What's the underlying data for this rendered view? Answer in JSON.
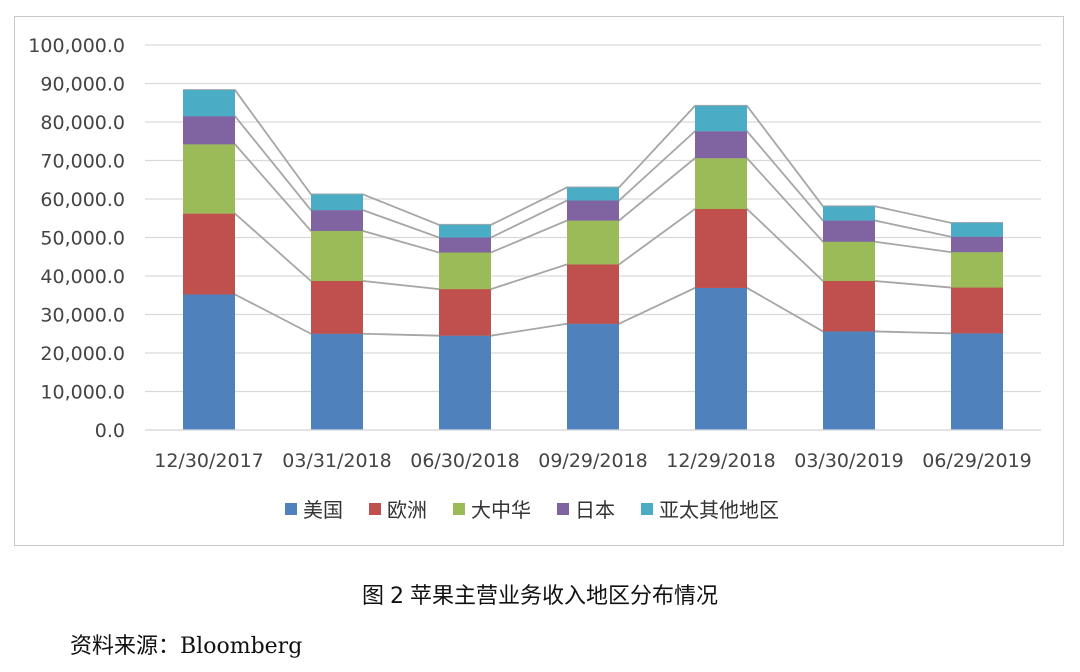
{
  "figure": {
    "caption_prefix": "图",
    "caption_number": "2",
    "caption_text": "苹果主营业务收入地区分布情况",
    "source_label": "资料来源：",
    "source_name": "Bloomberg"
  },
  "chart_data": {
    "type": "bar",
    "stacked": true,
    "series_lines": true,
    "categories": [
      "12/30/2017",
      "03/31/2018",
      "06/30/2018",
      "09/29/2018",
      "12/29/2018",
      "03/30/2019",
      "06/29/2019"
    ],
    "series": [
      {
        "name": "美国",
        "color": "#4f81bd",
        "values": [
          35200,
          25000,
          24500,
          27600,
          36900,
          25600,
          25100
        ]
      },
      {
        "name": "欧洲",
        "color": "#c0504d",
        "values": [
          21000,
          13700,
          12100,
          15400,
          20500,
          13100,
          11900
        ]
      },
      {
        "name": "大中华",
        "color": "#9bbb59",
        "values": [
          18000,
          13000,
          9500,
          11400,
          13200,
          10200,
          9200
        ]
      },
      {
        "name": "日本",
        "color": "#8064a2",
        "values": [
          7300,
          5400,
          3900,
          5200,
          7000,
          5500,
          4000
        ]
      },
      {
        "name": "亚太其他地区",
        "color": "#4bacc6",
        "values": [
          6800,
          4100,
          3300,
          3400,
          6600,
          3700,
          3600
        ]
      }
    ],
    "ylim": [
      0,
      100000
    ],
    "yticks": [
      "0.0",
      "10,000.0",
      "20,000.0",
      "30,000.0",
      "40,000.0",
      "50,000.0",
      "60,000.0",
      "70,000.0",
      "80,000.0",
      "90,000.0",
      "100,000.0"
    ],
    "grid": true,
    "legend_position": "bottom"
  }
}
